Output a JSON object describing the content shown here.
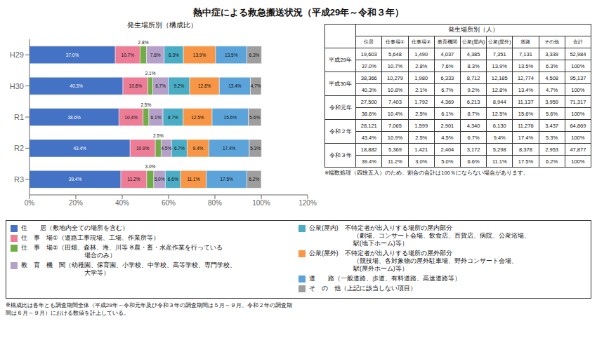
{
  "title": "熱中症による救急搬送状況（平成29年～令和３年）",
  "chart_data": [
    {
      "type": "bar",
      "title": "発生場所別（構成比）",
      "orientation": "horizontal",
      "stacked": true,
      "grid": false,
      "data_labels": true,
      "categories": [
        "H29",
        "H30",
        "R1",
        "R2",
        "R3"
      ],
      "xlim": [
        0,
        120
      ],
      "xticks": [
        {
          "value": 0,
          "label": "0%"
        },
        {
          "value": 20,
          "label": "20%"
        },
        {
          "value": 40,
          "label": "40%"
        },
        {
          "value": 60,
          "label": "60%"
        },
        {
          "value": 80,
          "label": "80%"
        },
        {
          "value": 100,
          "label": "100%"
        },
        {
          "value": 120,
          "label": "120%"
        }
      ],
      "series": [
        {
          "name": [
            "住　　居（敷地内全ての場所を含む）"
          ],
          "color": "#4472C4",
          "values": [
            37.0,
            40.3,
            38.6,
            43.4,
            39.4
          ],
          "value_labels": [
            "37.0%",
            "40.3%",
            "38.6%",
            "43.4%",
            "39.4%"
          ]
        },
        {
          "name": [
            "仕　事　場①（道路工事現場、工場、作業所等）"
          ],
          "color": "#ED7D97",
          "values": [
            10.7,
            10.8,
            10.4,
            10.9,
            11.2
          ],
          "value_labels": [
            "10.7%",
            "10.8%",
            "10.4%",
            "10.9%",
            "11.2%"
          ]
        },
        {
          "name": [
            "仕　事　場②（田畑、森林、海、川等 ※農・畜・水産作業を行っている",
            "　　　　　　　　　　場合のみ）"
          ],
          "color": "#70AD47",
          "values": [
            2.8,
            2.1,
            2.5,
            2.5,
            3.0
          ],
          "value_labels": [
            "2.8%",
            "2.1%",
            "2.5%",
            "2.5%",
            "3.0%"
          ]
        },
        {
          "name": [
            "教　育　機　関（幼稚園、保育園、小学校、中学校、高等学校、専門学校、",
            "　　　　　　　　　　大学等）"
          ],
          "color": "#B4A0C8",
          "values": [
            7.6,
            6.7,
            6.1,
            4.5,
            5.0
          ],
          "value_labels": [
            "7.6%",
            "6.7%",
            "6.1%",
            "4.5%",
            "5.0%"
          ]
        },
        {
          "name": [
            "公衆(屋内)　不特定者が出入りする場所の屋内部分",
            "　　　　　　　（劇場、コンサート会場、飲食店、百貨店、病院、公衆浴場、",
            "　　　　　　　駅(地下ホーム)等）"
          ],
          "color": "#4BACC6",
          "values": [
            8.3,
            9.2,
            8.7,
            6.7,
            6.6
          ],
          "value_labels": [
            "8.3%",
            "9.2%",
            "8.7%",
            "6.7%",
            "6.6%"
          ]
        },
        {
          "name": [
            "公衆(屋外)　不特定者が出入りする場所の屋外部分",
            "　　　　　　　（競技場、各対象物の屋外駐車場、野外コンサート会場、",
            "　　　　　　　駅(屋外ホーム)等）"
          ],
          "color": "#F79646",
          "values": [
            13.9,
            12.8,
            12.5,
            9.4,
            11.1
          ],
          "value_labels": [
            "13.9%",
            "12.8%",
            "12.5%",
            "9.4%",
            "11.1%"
          ]
        },
        {
          "name": [
            "道　　路（一般道路、歩道、有料道路、高速道路等）"
          ],
          "color": "#5BA3D9",
          "values": [
            13.5,
            13.4,
            15.6,
            17.4,
            17.5
          ],
          "value_labels": [
            "13.5%",
            "13.4%",
            "15.6%",
            "17.4%",
            "17.5%"
          ]
        },
        {
          "name": [
            "そ　の　他（上記に該当しない項目）"
          ],
          "color": "#9E9E9E",
          "values": [
            6.3,
            4.7,
            5.6,
            5.3,
            6.2
          ],
          "value_labels": [
            "6.3%",
            "4.7%",
            "5.6%",
            "5.3%",
            "6.2%"
          ]
        }
      ]
    },
    {
      "type": "table",
      "title": "発生場所別（人）",
      "columns": [
        "住居",
        "仕事場①",
        "仕事場②",
        "教育機関",
        "公衆(屋内)",
        "公衆(屋外)",
        "道路",
        "その他",
        "合計"
      ],
      "rows": [
        {
          "label": "平成29年",
          "values": [
            19603,
            5648,
            1490,
            4037,
            4385,
            7351,
            7131,
            3339,
            52984
          ],
          "value_labels": [
            "19,603",
            "5,648",
            "1,490",
            "4,037",
            "4,385",
            "7,351",
            "7,131",
            "3,339",
            "52,984"
          ],
          "shares": [
            37.0,
            10.7,
            2.8,
            7.6,
            8.3,
            13.9,
            13.5,
            6.3,
            100
          ],
          "share_labels": [
            "37.0%",
            "10.7%",
            "2.8%",
            "7.6%",
            "8.3%",
            "13.9%",
            "13.5%",
            "6.3%",
            "100%"
          ]
        },
        {
          "label": "平成30年",
          "values": [
            38366,
            10279,
            1980,
            6333,
            8712,
            12185,
            12774,
            4508,
            95137
          ],
          "value_labels": [
            "38,366",
            "10,279",
            "1,980",
            "6,333",
            "8,712",
            "12,185",
            "12,774",
            "4,508",
            "95,137"
          ],
          "shares": [
            40.3,
            10.8,
            2.1,
            6.7,
            9.2,
            12.8,
            13.4,
            4.7,
            100
          ],
          "share_labels": [
            "40.3%",
            "10.8%",
            "2.1%",
            "6.7%",
            "9.2%",
            "12.8%",
            "13.4%",
            "4.7%",
            "100%"
          ]
        },
        {
          "label": "令和元年",
          "values": [
            27500,
            7403,
            1792,
            4369,
            6213,
            8944,
            11137,
            3959,
            71317
          ],
          "value_labels": [
            "27,500",
            "7,403",
            "1,792",
            "4,369",
            "6,213",
            "8,944",
            "11,137",
            "3,959",
            "71,317"
          ],
          "shares": [
            38.6,
            10.4,
            2.5,
            6.1,
            8.7,
            12.5,
            15.6,
            5.6,
            100
          ],
          "share_labels": [
            "38.6%",
            "10.4%",
            "2.5%",
            "6.1%",
            "8.7%",
            "12.5%",
            "15.6%",
            "5.6%",
            "100%"
          ]
        },
        {
          "label": "令和２年",
          "values": [
            28121,
            7065,
            1599,
            2901,
            4340,
            6130,
            11276,
            3437,
            64869
          ],
          "value_labels": [
            "28,121",
            "7,065",
            "1,599",
            "2,901",
            "4,340",
            "6,130",
            "11,276",
            "3,437",
            "64,869"
          ],
          "shares": [
            43.4,
            10.9,
            2.5,
            4.5,
            6.7,
            9.4,
            17.4,
            5.3,
            100
          ],
          "share_labels": [
            "43.4%",
            "10.9%",
            "2.5%",
            "4.5%",
            "6.7%",
            "9.4%",
            "17.4%",
            "5.3%",
            "100%"
          ]
        },
        {
          "label": "令和３年",
          "values": [
            18882,
            5369,
            1421,
            2404,
            3172,
            5298,
            8378,
            2953,
            47877
          ],
          "value_labels": [
            "18,882",
            "5,369",
            "1,421",
            "2,404",
            "3,172",
            "5,298",
            "8,378",
            "2,953",
            "47,877"
          ],
          "shares": [
            39.4,
            11.2,
            3.0,
            5.0,
            6.6,
            11.1,
            17.5,
            6.2,
            100
          ],
          "share_labels": [
            "39.4%",
            "11.2%",
            "3.0%",
            "5.0%",
            "6.6%",
            "11.1%",
            "17.5%",
            "6.2%",
            "100%"
          ]
        }
      ],
      "note": "※端数処理（四捨五入）のため、割合の合計は100％にならない場合があります。"
    }
  ],
  "annotations": [
    "※構成比は各年とも調査期間全体（平成29年～令和元年及び令和３年の調査期間は５月～９月、令和２年の調査期",
    "間は６月～９月）における数値を計上している。"
  ]
}
